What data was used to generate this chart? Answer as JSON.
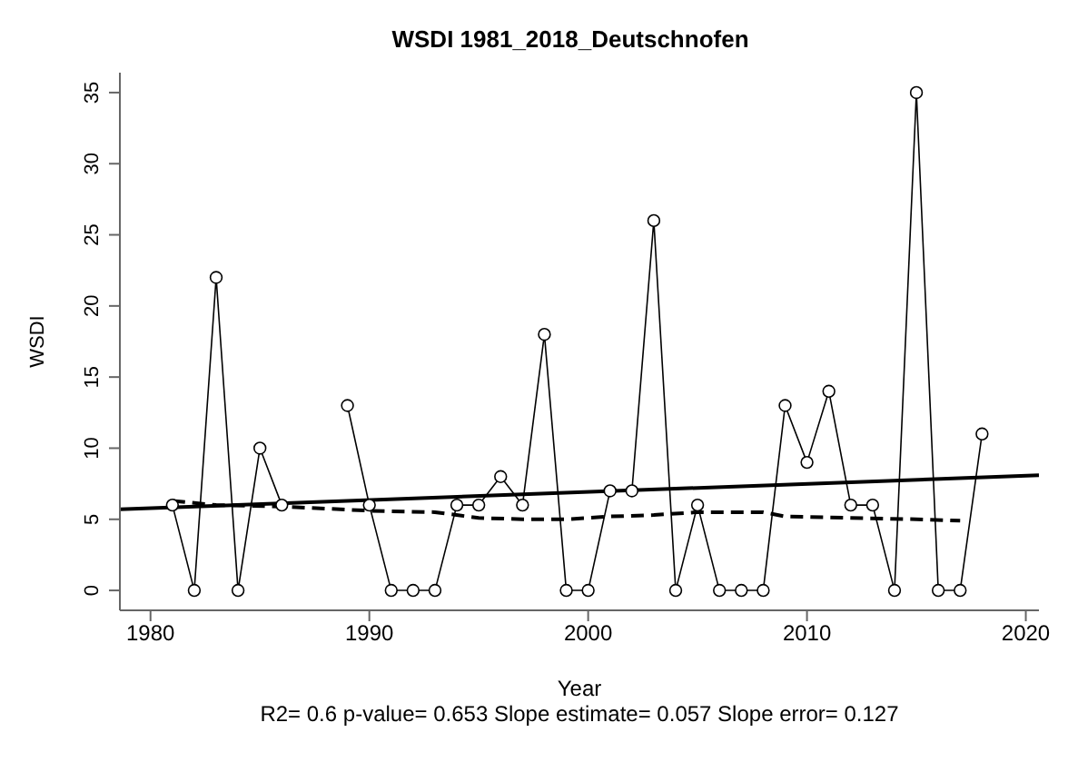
{
  "chart_data": {
    "type": "line",
    "title": "WSDI   1981_2018_Deutschnofen",
    "xlabel": "Year",
    "ylabel": "WSDI",
    "annotations": [
      "R2= 0.6  p-value= 0.653  Slope estimate= 0.057  Slope error= 0.127"
    ],
    "xlim": [
      1978.6,
      2020.6
    ],
    "xticks": [
      1980,
      1990,
      2000,
      2010,
      2020
    ],
    "ylim": [
      -1.4,
      36.4
    ],
    "yticks": [
      0,
      5,
      10,
      15,
      20,
      25,
      30,
      35
    ],
    "grid": false,
    "legend": false,
    "series": [
      {
        "color": "#000000",
        "marker": "circle",
        "line_style": "solid",
        "x": [
          1981,
          1982,
          1983,
          1984,
          1985,
          1986,
          1987,
          1988,
          1989,
          1990,
          1991,
          1992,
          1993,
          1994,
          1995,
          1996,
          1997,
          1998,
          1999,
          2000,
          2001,
          2002,
          2003,
          2004,
          2005,
          2006,
          2007,
          2008,
          2009,
          2010,
          2011,
          2012,
          2013,
          2014,
          2015,
          2016,
          2017,
          2018
        ],
        "values": [
          6,
          0,
          22,
          0,
          10,
          6,
          null,
          null,
          13,
          6,
          0,
          0,
          0,
          6,
          6,
          8,
          6,
          18,
          0,
          0,
          7,
          7,
          26,
          0,
          6,
          0,
          0,
          0,
          13,
          9,
          14,
          6,
          6,
          0,
          35,
          0,
          0,
          11
        ]
      },
      {
        "color": "#000000",
        "marker": "none",
        "line_style": "solid",
        "x": [
          1978.6,
          2020.6
        ],
        "values": [
          5.7,
          8.1
        ]
      },
      {
        "color": "#000000",
        "marker": "none",
        "line_style": "dashed",
        "x": [
          1981,
          1983,
          1986,
          1990,
          1993,
          1995,
          1997,
          1999,
          2001,
          2003,
          2005,
          2008,
          2009,
          2012,
          2015,
          2017
        ],
        "values": [
          6.3,
          6.0,
          5.9,
          5.6,
          5.5,
          5.1,
          5.0,
          5.0,
          5.2,
          5.3,
          5.5,
          5.5,
          5.2,
          5.1,
          5.0,
          4.9
        ]
      }
    ]
  }
}
